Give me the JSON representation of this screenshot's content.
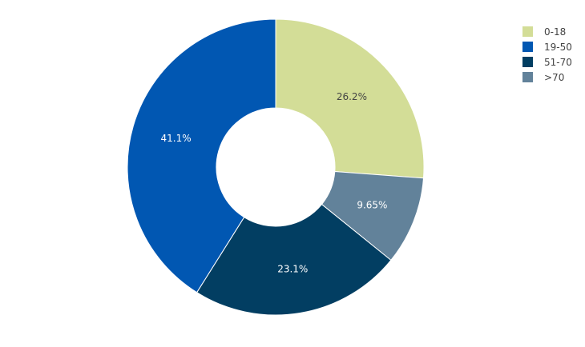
{
  "chart_data": {
    "type": "pie",
    "hole": true,
    "sort": "clockwise-from-top",
    "legend_position": "top-right",
    "slices": [
      {
        "label": "0-18",
        "value": 26.2,
        "text": "26.2%",
        "color": "#d3dd97",
        "text_color": "#444444"
      },
      {
        "label": ">70",
        "value": 9.65,
        "text": "9.65%",
        "color": "#62829a",
        "text_color": "#ffffff"
      },
      {
        "label": "51-70",
        "value": 23.1,
        "text": "23.1%",
        "color": "#023e62",
        "text_color": "#ffffff"
      },
      {
        "label": "19-50",
        "value": 41.1,
        "text": "41.1%",
        "color": "#0157b2",
        "text_color": "#ffffff"
      }
    ],
    "legend": [
      {
        "label": "0-18",
        "color": "#d3dd97"
      },
      {
        "label": "19-50",
        "color": "#0157b2"
      },
      {
        "label": "51-70",
        "color": "#023e62"
      },
      {
        "label": ">70",
        "color": "#62829a"
      }
    ]
  }
}
